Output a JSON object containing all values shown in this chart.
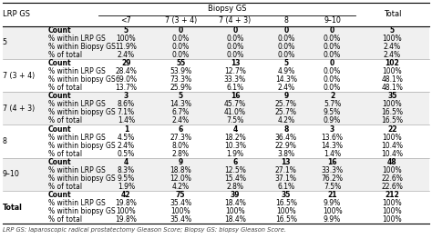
{
  "title_biopsy": "Biopsy GS",
  "col_header_lrp": "LRP GS",
  "col_header_total": "Total",
  "biopsy_cols": [
    "<7",
    "7 (3 + 4)",
    "7 (4 + 3)",
    "8",
    "9–10"
  ],
  "footnote": "LRP GS: laparoscopic radical prostatectomy Gleason Score; Biopsy GS: biopsy Gleason Score.",
  "rows": [
    {
      "lrp_gs": "5",
      "subrows": [
        [
          "Count",
          "5",
          "0",
          "0",
          "0",
          "0",
          "5"
        ],
        [
          "% within LRP GS",
          "100%",
          "0.0%",
          "0.0%",
          "0.0%",
          "0.0%",
          "100%"
        ],
        [
          "% within Biopsy GS",
          "11.9%",
          "0.0%",
          "0.0%",
          "0.0%",
          "0.0%",
          "2.4%"
        ],
        [
          "% of total",
          "2.4%",
          "0.0%",
          "0.0%",
          "0.0%",
          "0.0%",
          "2.4%"
        ]
      ]
    },
    {
      "lrp_gs": "7 (3 + 4)",
      "subrows": [
        [
          "Count",
          "29",
          "55",
          "13",
          "5",
          "0",
          "102"
        ],
        [
          "% within LRP GS",
          "28.4%",
          "53.9%",
          "12.7%",
          "4.9%",
          "0.0%",
          "100%"
        ],
        [
          "% within biopsy GS",
          "69.0%",
          "73.3%",
          "33.3%",
          "14.3%",
          "0.0%",
          "48.1%"
        ],
        [
          "% of total",
          "13.7%",
          "25.9%",
          "6.1%",
          "2.4%",
          "0.0%",
          "48.1%"
        ]
      ]
    },
    {
      "lrp_gs": "7 (4 + 3)",
      "subrows": [
        [
          "Count",
          "3",
          "5",
          "16",
          "9",
          "2",
          "35"
        ],
        [
          "% within LRP GS",
          "8.6%",
          "14.3%",
          "45.7%",
          "25.7%",
          "5.7%",
          "100%"
        ],
        [
          "% within biopsy GS",
          "7.1%",
          "6.7%",
          "41.0%",
          "25.7%",
          "9.5%",
          "16.5%"
        ],
        [
          "% of total",
          "1.4%",
          "2.4%",
          "7.5%",
          "4.2%",
          "0.9%",
          "16.5%"
        ]
      ]
    },
    {
      "lrp_gs": "8",
      "subrows": [
        [
          "Count",
          "1",
          "6",
          "4",
          "8",
          "3",
          "22"
        ],
        [
          "% within LRP GS",
          "4.5%",
          "27.3%",
          "18.2%",
          "36.4%",
          "13.6%",
          "100%"
        ],
        [
          "% within biopsy GS",
          "2.4%",
          "8.0%",
          "10.3%",
          "22.9%",
          "14.3%",
          "10.4%"
        ],
        [
          "% of total",
          "0.5%",
          "2.8%",
          "1.9%",
          "3.8%",
          "1.4%",
          "10.4%"
        ]
      ]
    },
    {
      "lrp_gs": "9–10",
      "subrows": [
        [
          "Count",
          "4",
          "9",
          "6",
          "13",
          "16",
          "48"
        ],
        [
          "% within LRP GS",
          "8.3%",
          "18.8%",
          "12.5%",
          "27.1%",
          "33.3%",
          "100%"
        ],
        [
          "% within biopsy GS",
          "9.5%",
          "12.0%",
          "15.4%",
          "37.1%",
          "76.2%",
          "22.6%"
        ],
        [
          "% of total",
          "1.9%",
          "4.2%",
          "2.8%",
          "6.1%",
          "7.5%",
          "22.6%"
        ]
      ]
    },
    {
      "lrp_gs": "Total",
      "subrows": [
        [
          "Count",
          "42",
          "75",
          "39",
          "35",
          "21",
          "212"
        ],
        [
          "% within LRP GS",
          "19.8%",
          "35.4%",
          "18.4%",
          "16.5%",
          "9.9%",
          "100%"
        ],
        [
          "% within biopsy GS",
          "100%",
          "100%",
          "100%",
          "100%",
          "100%",
          "100%"
        ],
        [
          "% of total",
          "19.8%",
          "35.4%",
          "18.4%",
          "16.5%",
          "9.9%",
          "100%"
        ]
      ]
    }
  ],
  "header_fontsize": 6.0,
  "cell_fontsize": 5.5,
  "footnote_fontsize": 4.8
}
